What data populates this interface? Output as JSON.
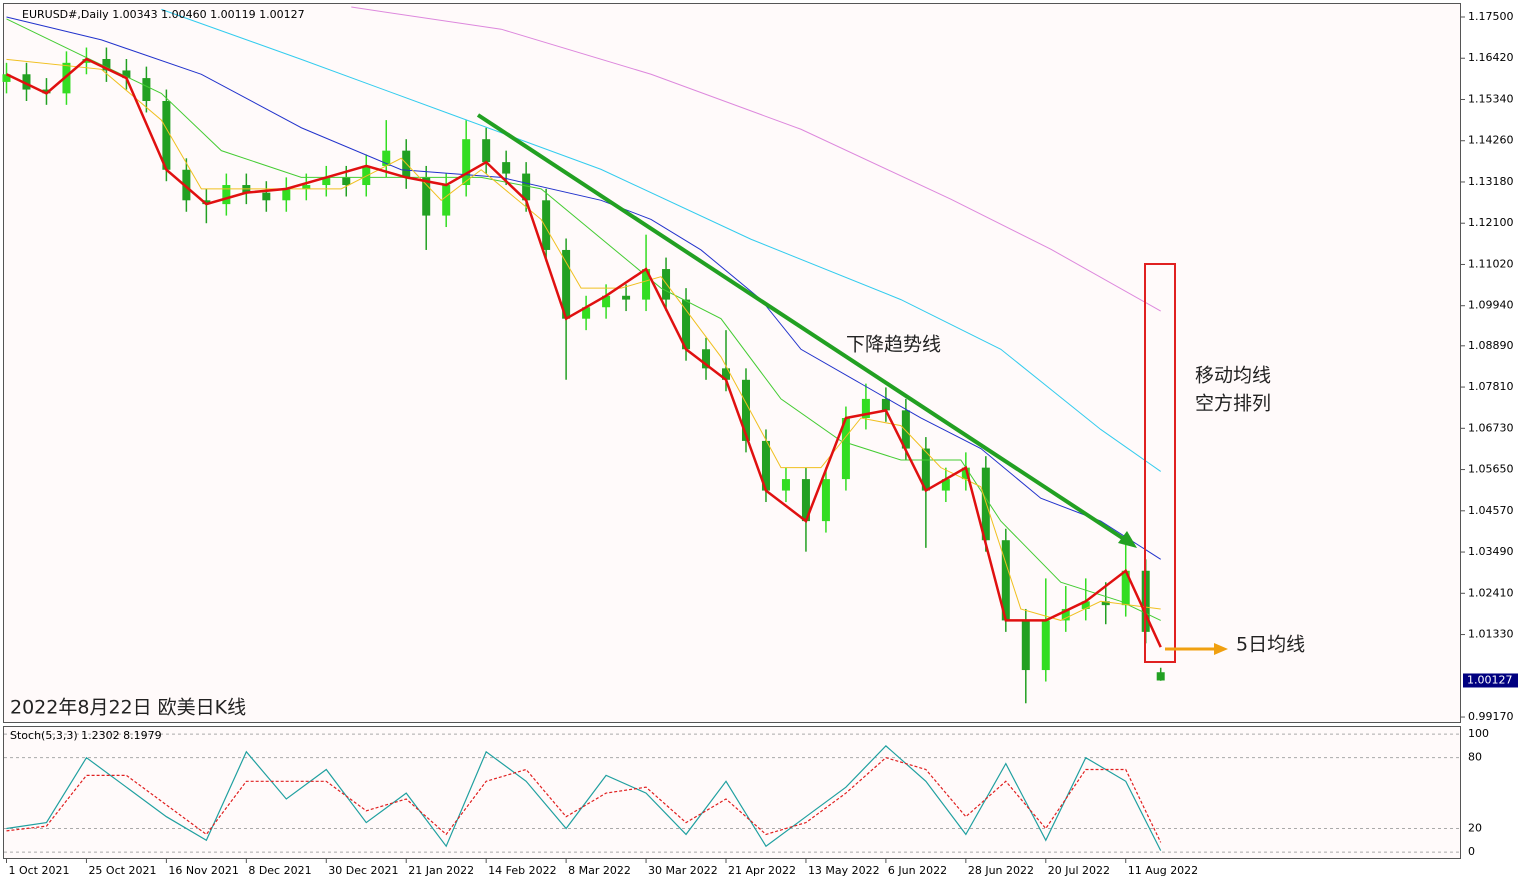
{
  "chart_data": [
    {
      "type": "candlestick",
      "title": "EURUSD#,Daily  1.00343 1.00460 1.00119 1.00127",
      "xlim": [
        -0.5,
        290.9
      ],
      "ylim": [
        0.9904,
        1.1784
      ],
      "yticks": [
        {
          "value": 1.175,
          "label": "1.17500"
        },
        {
          "value": 1.1642,
          "label": "1.16420"
        },
        {
          "value": 1.1534,
          "label": "1.15340"
        },
        {
          "value": 1.1426,
          "label": "1.14260"
        },
        {
          "value": 1.1318,
          "label": "1.13180"
        },
        {
          "value": 1.121,
          "label": "1.12100"
        },
        {
          "value": 1.1102,
          "label": "1.11020"
        },
        {
          "value": 1.0994,
          "label": "1.09940"
        },
        {
          "value": 1.0889,
          "label": "1.08890"
        },
        {
          "value": 1.0781,
          "label": "1.07810"
        },
        {
          "value": 1.0673,
          "label": "1.06730"
        },
        {
          "value": 1.0565,
          "label": "1.05650"
        },
        {
          "value": 1.0457,
          "label": "1.04570"
        },
        {
          "value": 1.0349,
          "label": "1.03490"
        },
        {
          "value": 1.0241,
          "label": "1.02410"
        },
        {
          "value": 1.0133,
          "label": "1.01330"
        },
        {
          "value": 0.9917,
          "label": "0.99170"
        }
      ],
      "last_price": 1.00127,
      "up_color": "#33dd22",
      "down_color": "#22a022",
      "x": [
        0,
        4,
        8,
        12,
        16,
        20,
        24,
        28,
        32,
        36,
        40,
        44,
        48,
        52,
        56,
        60,
        64,
        68,
        72,
        76,
        80,
        84,
        88,
        92,
        96,
        100,
        104,
        108,
        112,
        116,
        120,
        124,
        128,
        132,
        136,
        140,
        144,
        148,
        152,
        156,
        160,
        164,
        168,
        172,
        176,
        180,
        184,
        188,
        192,
        196,
        200,
        204,
        208,
        212,
        216,
        220,
        224,
        228,
        231
      ],
      "open": [
        1.158,
        1.16,
        1.156,
        1.155,
        1.163,
        1.164,
        1.161,
        1.159,
        1.153,
        1.135,
        1.127,
        1.126,
        1.131,
        1.129,
        1.127,
        1.13,
        1.131,
        1.133,
        1.131,
        1.136,
        1.14,
        1.133,
        1.123,
        1.131,
        1.143,
        1.137,
        1.134,
        1.127,
        1.114,
        1.096,
        1.099,
        1.102,
        1.101,
        1.109,
        1.101,
        1.088,
        1.083,
        1.08,
        1.064,
        1.051,
        1.054,
        1.043,
        1.054,
        1.07,
        1.075,
        1.072,
        1.062,
        1.051,
        1.054,
        1.057,
        1.038,
        1.017,
        1.004,
        1.017,
        1.02,
        1.022,
        1.021,
        1.03,
        1.00343
      ],
      "high": [
        1.163,
        1.163,
        1.159,
        1.166,
        1.167,
        1.167,
        1.164,
        1.162,
        1.156,
        1.138,
        1.13,
        1.134,
        1.134,
        1.132,
        1.133,
        1.134,
        1.136,
        1.136,
        1.139,
        1.148,
        1.143,
        1.136,
        1.134,
        1.148,
        1.146,
        1.14,
        1.137,
        1.13,
        1.117,
        1.102,
        1.105,
        1.105,
        1.118,
        1.112,
        1.104,
        1.091,
        1.093,
        1.083,
        1.067,
        1.057,
        1.057,
        1.057,
        1.073,
        1.079,
        1.078,
        1.075,
        1.065,
        1.057,
        1.061,
        1.06,
        1.041,
        1.02,
        1.028,
        1.026,
        1.028,
        1.027,
        1.037,
        1.033,
        1.0046
      ],
      "low": [
        1.155,
        1.153,
        1.152,
        1.152,
        1.16,
        1.158,
        1.156,
        1.15,
        1.132,
        1.124,
        1.121,
        1.123,
        1.126,
        1.124,
        1.124,
        1.127,
        1.128,
        1.128,
        1.128,
        1.133,
        1.13,
        1.114,
        1.12,
        1.128,
        1.134,
        1.131,
        1.124,
        1.111,
        1.08,
        1.093,
        1.096,
        1.098,
        1.098,
        1.098,
        1.085,
        1.08,
        1.077,
        1.061,
        1.048,
        1.048,
        1.035,
        1.04,
        1.051,
        1.067,
        1.069,
        1.059,
        1.036,
        1.048,
        1.051,
        1.035,
        1.014,
        0.9953,
        1.001,
        1.014,
        1.017,
        1.016,
        1.018,
        1.011,
        1.00119
      ],
      "close": [
        1.16,
        1.156,
        1.155,
        1.163,
        1.164,
        1.161,
        1.159,
        1.153,
        1.135,
        1.127,
        1.126,
        1.131,
        1.129,
        1.127,
        1.13,
        1.131,
        1.133,
        1.131,
        1.136,
        1.14,
        1.133,
        1.123,
        1.131,
        1.143,
        1.137,
        1.134,
        1.127,
        1.114,
        1.096,
        1.099,
        1.102,
        1.101,
        1.109,
        1.101,
        1.088,
        1.083,
        1.08,
        1.064,
        1.051,
        1.054,
        1.043,
        1.054,
        1.07,
        1.075,
        1.072,
        1.062,
        1.051,
        1.054,
        1.057,
        1.038,
        1.017,
        1.004,
        1.017,
        1.02,
        1.022,
        1.021,
        1.03,
        1.014,
        1.00127
      ],
      "series": [
        {
          "color": "#dd88dd",
          "width": 1,
          "x": [
            69,
            99,
            129,
            159,
            189,
            209,
            231
          ],
          "values": [
            1.1776,
            1.1718,
            1.16,
            1.1456,
            1.1273,
            1.1142,
            1.098
          ]
        },
        {
          "color": "#33ccee",
          "width": 1,
          "x": [
            31,
            59,
            89,
            119,
            149,
            179,
            199,
            219,
            231
          ],
          "values": [
            1.177,
            1.1639,
            1.1495,
            1.1351,
            1.1168,
            1.101,
            1.088,
            1.067,
            1.056
          ]
        },
        {
          "color": "#2233cc",
          "width": 1,
          "x": [
            0,
            19,
            39,
            59,
            79,
            99,
            119,
            129,
            139,
            151,
            159,
            171,
            183,
            195,
            207,
            219,
            231
          ],
          "values": [
            1.175,
            1.169,
            1.16,
            1.146,
            1.135,
            1.133,
            1.127,
            1.122,
            1.114,
            1.101,
            1.088,
            1.079,
            1.07,
            1.062,
            1.049,
            1.043,
            1.033
          ]
        },
        {
          "color": "#44cc33",
          "width": 1,
          "x": [
            0,
            15,
            31,
            43,
            59,
            79,
            95,
            107,
            119,
            131,
            143,
            155,
            167,
            179,
            191,
            199,
            211,
            223,
            231
          ],
          "values": [
            1.1745,
            1.165,
            1.155,
            1.14,
            1.133,
            1.133,
            1.133,
            1.13,
            1.117,
            1.104,
            1.096,
            1.075,
            1.064,
            1.059,
            1.059,
            1.043,
            1.027,
            1.022,
            1.017
          ]
        },
        {
          "color": "#f0c020",
          "width": 1,
          "x": [
            0,
            19,
            31,
            39,
            51,
            67,
            79,
            87,
            95,
            107,
            115,
            123,
            131,
            143,
            155,
            163,
            171,
            179,
            187,
            195,
            203,
            211,
            219,
            231
          ],
          "values": [
            1.1639,
            1.1613,
            1.148,
            1.13,
            1.13,
            1.13,
            1.138,
            1.127,
            1.135,
            1.122,
            1.104,
            1.104,
            1.107,
            1.086,
            1.057,
            1.057,
            1.07,
            1.068,
            1.057,
            1.052,
            1.02,
            1.017,
            1.022,
            1.02
          ]
        },
        {
          "color": "#e01010",
          "width": 2.5,
          "x": [
            0,
            8,
            16,
            24,
            32,
            40,
            48,
            56,
            64,
            72,
            80,
            88,
            96,
            104,
            112,
            120,
            128,
            136,
            144,
            152,
            160,
            168,
            176,
            184,
            192,
            200,
            208,
            216,
            224,
            231
          ],
          "values": [
            1.16,
            1.155,
            1.164,
            1.159,
            1.135,
            1.126,
            1.129,
            1.13,
            1.133,
            1.136,
            1.133,
            1.131,
            1.137,
            1.127,
            1.096,
            1.102,
            1.109,
            1.088,
            1.08,
            1.051,
            1.043,
            1.07,
            1.072,
            1.051,
            1.057,
            1.017,
            1.017,
            1.022,
            1.03,
            1.01
          ]
        }
      ],
      "annotations": {
        "trend": "下降趋势线",
        "ma_line1": "移动均线",
        "ma_line2": "空方排列",
        "ma5": "5日均线",
        "caption": "2022年8月22日 欧美日K线"
      }
    },
    {
      "type": "line",
      "title": "Stoch(5,3,3) 1.2302 8.1979",
      "xlim": [
        -0.5,
        290.9
      ],
      "ylim": [
        -5,
        106
      ],
      "yticks": [
        0,
        20,
        80,
        100
      ],
      "xticks": [
        {
          "value": 0,
          "label": "1 Oct 2021"
        },
        {
          "value": 16,
          "label": "25 Oct 2021"
        },
        {
          "value": 32,
          "label": "16 Nov 2021"
        },
        {
          "value": 48,
          "label": "8 Dec 2021"
        },
        {
          "value": 64,
          "label": "30 Dec 2021"
        },
        {
          "value": 80,
          "label": "21 Jan 2022"
        },
        {
          "value": 96,
          "label": "14 Feb 2022"
        },
        {
          "value": 112,
          "label": "8 Mar 2022"
        },
        {
          "value": 128,
          "label": "30 Mar 2022"
        },
        {
          "value": 144,
          "label": "21 Apr 2022"
        },
        {
          "value": 160,
          "label": "13 May 2022"
        },
        {
          "value": 176,
          "label": "6 Jun 2022"
        },
        {
          "value": 192,
          "label": "28 Jun 2022"
        },
        {
          "value": 208,
          "label": "20 Jul 2022"
        },
        {
          "value": 224,
          "label": "11 Aug 2022"
        }
      ],
      "x": [
        0,
        8,
        16,
        24,
        32,
        40,
        48,
        56,
        64,
        72,
        80,
        88,
        96,
        104,
        112,
        120,
        128,
        136,
        144,
        152,
        160,
        168,
        176,
        184,
        192,
        200,
        208,
        216,
        224,
        231
      ],
      "series": [
        {
          "color": "#20a0a0",
          "dashed": false,
          "values": [
            20,
            25,
            80,
            55,
            30,
            10,
            85,
            45,
            70,
            25,
            50,
            5,
            85,
            60,
            20,
            65,
            50,
            15,
            60,
            5,
            30,
            55,
            90,
            60,
            15,
            75,
            10,
            80,
            60,
            1.2302
          ]
        },
        {
          "color": "#e02020",
          "dashed": true,
          "values": [
            18,
            22,
            65,
            65,
            40,
            15,
            60,
            60,
            60,
            35,
            45,
            15,
            60,
            70,
            30,
            50,
            55,
            25,
            45,
            15,
            25,
            50,
            80,
            70,
            30,
            60,
            20,
            70,
            70,
            8.1979
          ]
        }
      ]
    }
  ]
}
